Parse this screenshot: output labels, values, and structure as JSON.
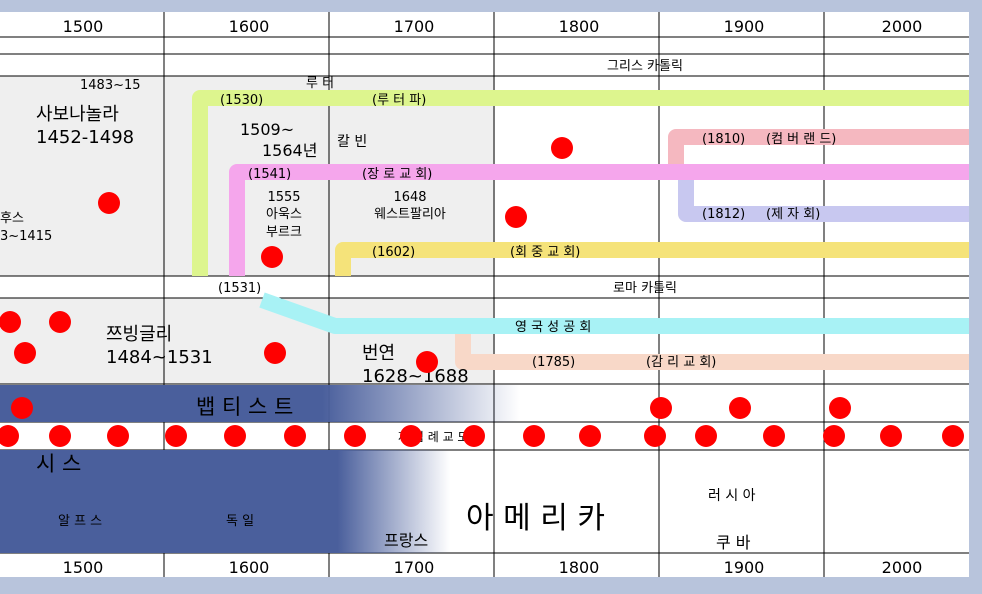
{
  "years": [
    "1500",
    "1600",
    "1700",
    "1800",
    "1900",
    "2000"
  ],
  "bands": {
    "orthodox": "그리스 카톨릭",
    "roman": "로마 카톨릭"
  },
  "people": {
    "hus_name": "후스",
    "hus_years": "3~1415",
    "savonarola_top": "1483~15",
    "savonarola_name": "사보나놀라",
    "savonarola_years": "1452-1498",
    "luther": "루 터",
    "calvin_years_a": "1509~",
    "calvin_years_b": "1564년",
    "calvin": "칼 빈",
    "zwingli_name": "쯔빙글리",
    "zwingli_years": "1484~1531",
    "bunyan_name": "번연",
    "bunyan_years": "1628~1688"
  },
  "events": {
    "augsburg_year": "1555",
    "augsburg_a": "아욱스",
    "augsburg_b": "부르크",
    "westminster_year": "1648",
    "westminster": "웨스트팔리아"
  },
  "denominations": {
    "lutheran_year": "(1530)",
    "lutheran": "(루   터   파)",
    "reformed_year": "(1541)",
    "reformed": "(장     로     교     회)",
    "congregational_year": "(1602)",
    "congregational": "(회     중     교     회)",
    "cumberland_year": "(1810)",
    "cumberland": "(컴 버 랜 드)",
    "disciples_year": "(1812)",
    "disciples": "(제  자  회)",
    "anglican_year": "(1531)",
    "anglican": "영     국     성     공     회",
    "methodist_year": "(1785)",
    "methodist": "(감   리   교   회)",
    "baptist": "뱁    티    스    트",
    "anabaptist": "재 침 례 교 도"
  },
  "regions": {
    "swiss": "시         스",
    "alps": "알 프 스",
    "germany": "독   일",
    "france": "프랑스",
    "america": "아         메         리         카",
    "russia": "러 시 아",
    "cuba": "쿠  바"
  },
  "colors": {
    "lutheran": "#ddf58e",
    "reformed": "#f5a6ec",
    "congregational": "#f5e37a",
    "cumberland": "#f5b8c0",
    "disciples": "#c8c8f0",
    "anglican": "#a8f2f5",
    "methodist": "#f8d8c8",
    "baptist_dark": "#4a5f9c",
    "dot": "#ff0000"
  }
}
